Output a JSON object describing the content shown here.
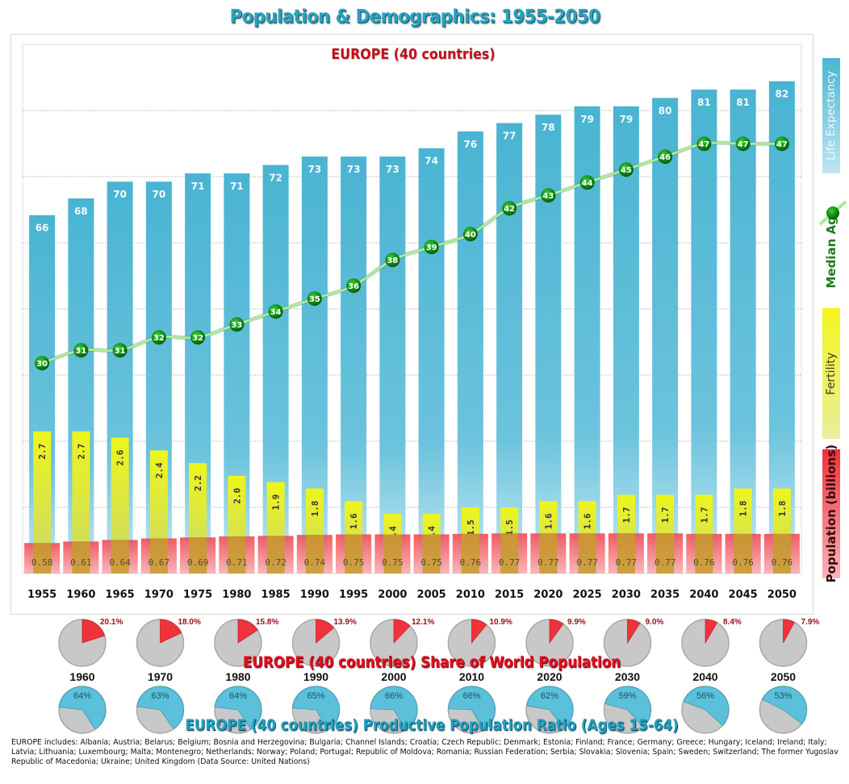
{
  "title": "Population & Demographics: 1955-2050",
  "chart_data": [
    {
      "type": "bar",
      "title": "EUROPE (40 countries)",
      "xlabel": "",
      "ylabel": "",
      "grid": true,
      "legend_position": "right",
      "categories": [
        "1955",
        "1960",
        "1965",
        "1970",
        "1975",
        "1980",
        "1985",
        "1990",
        "1995",
        "2000",
        "2005",
        "2010",
        "2015",
        "2020",
        "2025",
        "2030",
        "2035",
        "2040",
        "2045",
        "2050"
      ],
      "series": [
        {
          "name": "Life Expectancy",
          "kind": "bar",
          "color": "#4bb6d3",
          "values": [
            66,
            68,
            70,
            70,
            71,
            71,
            72,
            73,
            73,
            73,
            74,
            76,
            77,
            78,
            79,
            79,
            80,
            81,
            81,
            82
          ],
          "axis_min": 23.2,
          "axis_max": 86.4
        },
        {
          "name": "Median Age",
          "kind": "line",
          "color": "#1f8f1f",
          "line_color": "#a8ec9a",
          "values": [
            30,
            31,
            31,
            32,
            32,
            33,
            34,
            35,
            36,
            38,
            39,
            40,
            42,
            43,
            44,
            45,
            46,
            47,
            47,
            47
          ],
          "axis_min": 13.7,
          "axis_max": 54.7
        },
        {
          "name": "Fertility",
          "kind": "bar",
          "color": "#e8ee2a",
          "values": [
            "2.7",
            "2.7",
            "2.6",
            "2.4",
            "2.2",
            "2.0",
            "1.9",
            "1.8",
            "1.6",
            "1.4",
            "1.4",
            "1.5",
            "1.5",
            "1.6",
            "1.6",
            "1.7",
            "1.7",
            "1.7",
            "1.8",
            "1.8"
          ],
          "axis_min": 0.46,
          "axis_max": 8.8
        },
        {
          "name": "Population (billions)",
          "kind": "bar",
          "color": "#f0323c",
          "values": [
            "0.58",
            "0.61",
            "0.64",
            "0.67",
            "0.69",
            "0.71",
            "0.72",
            "0.74",
            "0.75",
            "0.75",
            "0.75",
            "0.76",
            "0.77",
            "0.77",
            "0.77",
            "0.77",
            "0.77",
            "0.76",
            "0.76",
            "0.76"
          ],
          "axis_min": -0.02,
          "axis_max": 10.4
        }
      ]
    },
    {
      "type": "pie",
      "title": "EUROPE (40 countries)  Share of World Population",
      "categories": [
        "1960",
        "1970",
        "1980",
        "1990",
        "2000",
        "2010",
        "2020",
        "2030",
        "2040",
        "2050"
      ],
      "values": [
        20.1,
        18.0,
        15.8,
        13.9,
        12.1,
        10.9,
        9.9,
        9.0,
        8.4,
        7.9
      ],
      "labels": [
        "20.1%",
        "18.0%",
        "15.8%",
        "13.9%",
        "12.1%",
        "10.9%",
        "9.9%",
        "9.0%",
        "8.4%",
        "7.9%"
      ],
      "colors": {
        "share": "#f0323c",
        "rest": "#c8c8c8"
      }
    },
    {
      "type": "pie",
      "title": "EUROPE (40 countries)  Productive  Population  Ratio  (Ages 15-64)",
      "categories": [
        "1960",
        "1970",
        "1980",
        "1990",
        "2000",
        "2010",
        "2020",
        "2030",
        "2040",
        "2050"
      ],
      "values": [
        64,
        63,
        64,
        65,
        66,
        66,
        62,
        59,
        56,
        53
      ],
      "labels": [
        "64%",
        "63%",
        "64%",
        "65%",
        "66%",
        "66%",
        "62%",
        "59%",
        "56%",
        "53%"
      ],
      "colors": {
        "share": "#5bc0da",
        "rest": "#c8c8c8"
      }
    }
  ],
  "legend": {
    "life": "Life Expectancy",
    "median": "Median Age",
    "fertility": "Fertility",
    "population": "Population (billions)"
  },
  "share_title": "EUROPE (40 countries)  Share of World Population",
  "ratio_title": "EUROPE (40 countries)  Productive  Population  Ratio  (Ages 15-64)",
  "footnote": "EUROPE includes: Albania; Austria; Belarus; Belgium; Bosnia and Herzegovina; Bulgaria; Channel Islands; Croatia; Czech Republic; Denmark; Estonia; Finland; France; Germany; Greece; Hungary; Iceland; Ireland; Italy; Latvia; Lithuania; Luxembourg; Malta; Montenegro; Netherlands; Norway; Poland; Portugal; Republic of Moldova; Romania; Russian Federation; Serbia; Slovakia; Slovenia; Spain; Sweden; Switzerland; The former Yugoslav Republic of Macedonia; Ukraine; United Kingdom  (Data Source: United Nations)"
}
